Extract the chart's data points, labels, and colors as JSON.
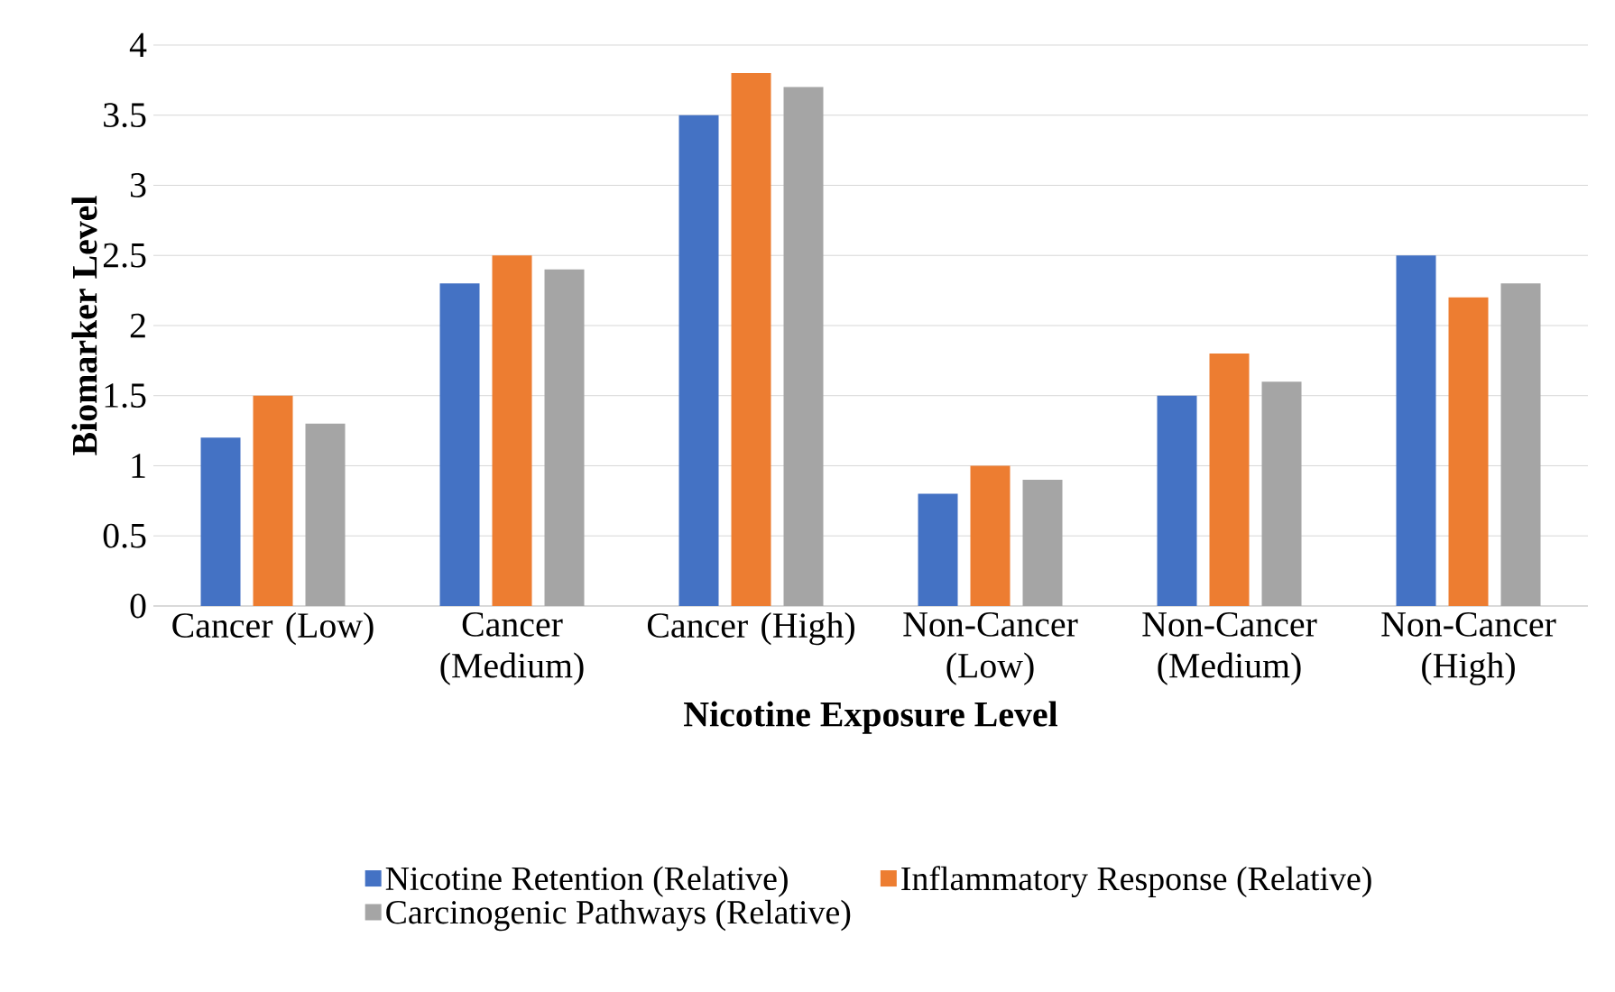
{
  "chart_data": {
    "type": "bar",
    "xlabel": "Nicotine Exposure Level",
    "ylabel": "Biomarker Level",
    "categories": [
      "Cancer (Low)",
      "Cancer (Medium)",
      "Cancer (High)",
      "Non-Cancer (Low)",
      "Non-Cancer (Medium)",
      "Non-Cancer (High)"
    ],
    "series": [
      {
        "name": "Nicotine Retention (Relative)",
        "color": "#4472c4",
        "values": [
          1.2,
          2.3,
          3.5,
          0.8,
          1.5,
          2.5
        ]
      },
      {
        "name": "Inflammatory Response (Relative)",
        "color": "#ed7d31",
        "values": [
          1.5,
          2.5,
          3.8,
          1.0,
          1.8,
          2.2
        ]
      },
      {
        "name": "Carcinogenic Pathways (Relative)",
        "color": "#a5a5a5",
        "values": [
          1.3,
          2.4,
          3.7,
          0.9,
          1.6,
          2.3
        ]
      }
    ],
    "ylim": [
      0,
      4
    ],
    "yticks": [
      0,
      0.5,
      1,
      1.5,
      2,
      2.5,
      3,
      3.5,
      4
    ],
    "grid": "y",
    "legend": "bottom"
  }
}
